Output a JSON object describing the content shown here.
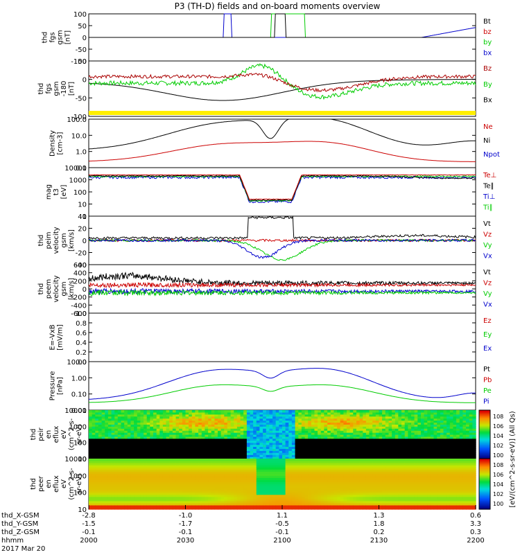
{
  "chart_data": {
    "type": "line",
    "title": "P3 (TH-D) fields and on-board moments overview",
    "date": "2017 Mar 20",
    "time_axis": {
      "tick_labels": [
        "2000",
        "2030",
        "2100",
        "2130",
        "2200"
      ],
      "orbit_rows": [
        {
          "label": "thd_X-GSM",
          "values": [
            "-2.8",
            "-1.0",
            "1.1",
            "1.3",
            "0.6"
          ]
        },
        {
          "label": "thd_Y-GSM",
          "values": [
            "-1.5",
            "-1.7",
            "-0.5",
            "1.8",
            "3.3"
          ]
        },
        {
          "label": "thd_Z-GSM",
          "values": [
            "-0.1",
            "-0.1",
            "-0.1",
            "0.2",
            "0.3"
          ]
        },
        {
          "label": "hhmm",
          "values": [
            "2000",
            "2030",
            "2100",
            "2130",
            "2200"
          ]
        }
      ]
    },
    "panels": [
      {
        "id": "fgs",
        "ylabel": [
          "thd",
          "fgs",
          "gsm",
          "[nT]"
        ],
        "ticks": [
          "100",
          "50",
          "0",
          "-50",
          "-100"
        ],
        "ylim": [
          -100,
          100
        ],
        "legend": [
          {
            "name": "Bt",
            "color": "#000000"
          },
          {
            "name": "bz",
            "color": "#cc0000"
          },
          {
            "name": "by",
            "color": "#00cc00"
          },
          {
            "name": "bx",
            "color": "#0000cc"
          }
        ]
      },
      {
        "id": "fgs2",
        "ylabel": [
          "thd",
          "fgs",
          "gsm",
          "-180",
          "[nT]"
        ],
        "ticks": [
          "50",
          "0",
          "-50",
          "-100"
        ],
        "ylim": [
          -125,
          75
        ],
        "legend": [
          {
            "name": "Bz",
            "color": "#aa0000"
          },
          {
            "name": "By",
            "color": "#00cc00"
          },
          {
            "name": "Bx",
            "color": "#000000"
          }
        ]
      },
      {
        "id": "density",
        "ylabel": [
          "Density",
          "[cm-3]"
        ],
        "ticks": [
          "100.0",
          "10.0",
          "1.0",
          "0.1"
        ],
        "scale": "log",
        "ylim": [
          0.1,
          300
        ],
        "legend": [
          {
            "name": "Ne",
            "color": "#cc0000"
          },
          {
            "name": "Ni",
            "color": "#000000"
          },
          {
            "name": "Npot",
            "color": "#0000cc"
          }
        ]
      },
      {
        "id": "temp",
        "ylabel": [
          "mag",
          "t3",
          "[eV]"
        ],
        "ticks": [
          "10000",
          "1000",
          "100",
          "10",
          "1"
        ],
        "scale": "log",
        "ylim": [
          1,
          10000
        ],
        "legend": [
          {
            "name": "Te⊥",
            "color": "#cc0000"
          },
          {
            "name": "Te∥",
            "color": "#000000"
          },
          {
            "name": "Ti⊥",
            "color": "#0000cc"
          },
          {
            "name": "Ti∥",
            "color": "#00cc00"
          }
        ]
      },
      {
        "id": "peim",
        "ylabel": [
          "thd",
          "peim",
          "velocity",
          "gsm",
          "[km/s]"
        ],
        "ticks": [
          "40",
          "20",
          "0",
          "-20",
          "-40"
        ],
        "ylim": [
          -40,
          40
        ],
        "legend": [
          {
            "name": "Vt",
            "color": "#000000"
          },
          {
            "name": "Vz",
            "color": "#cc0000"
          },
          {
            "name": "Vy",
            "color": "#00cc00"
          },
          {
            "name": "Vx",
            "color": "#0000cc"
          }
        ]
      },
      {
        "id": "peem",
        "ylabel": [
          "thd",
          "peem",
          "velocity",
          "gsm",
          "[km/s]"
        ],
        "ticks": [
          "600",
          "400",
          "200",
          "0",
          "-200",
          "-400",
          "-600"
        ],
        "ylim": [
          -600,
          600
        ],
        "legend": [
          {
            "name": "Vt",
            "color": "#000000"
          },
          {
            "name": "Vz",
            "color": "#cc0000"
          },
          {
            "name": "Vy",
            "color": "#00cc00"
          },
          {
            "name": "Vx",
            "color": "#0000cc"
          }
        ]
      },
      {
        "id": "efield",
        "ylabel": [
          "E=-VxB",
          "[mV/m]"
        ],
        "ticks": [
          "1.0",
          "0.8",
          "0.6",
          "0.4",
          "0.2",
          "0.0"
        ],
        "ylim": [
          0,
          1
        ],
        "legend": [
          {
            "name": "Ez",
            "color": "#cc0000"
          },
          {
            "name": "Ey",
            "color": "#00cc00"
          },
          {
            "name": "Ex",
            "color": "#0000cc"
          }
        ]
      },
      {
        "id": "pressure",
        "ylabel": [
          "Pressure",
          "[nPa]"
        ],
        "ticks": [
          "10.00",
          "1.00",
          "0.10",
          "0.01"
        ],
        "scale": "log",
        "ylim": [
          0.005,
          20
        ],
        "legend": [
          {
            "name": "Pt",
            "color": "#000000"
          },
          {
            "name": "Pb",
            "color": "#cc0000"
          },
          {
            "name": "Pe",
            "color": "#00cc00"
          },
          {
            "name": "Pi",
            "color": "#0000cc"
          }
        ]
      },
      {
        "id": "peir",
        "ylabel": [
          "thd",
          "peir",
          "en",
          "eflux",
          "eV",
          "(cm^2-s-",
          "sr-eV)"
        ],
        "ticks": [
          "10000",
          "1000",
          "100",
          "10"
        ],
        "scale": "log",
        "ylim": [
          5,
          20000
        ]
      },
      {
        "id": "peer",
        "ylabel": [
          "thd",
          "peer",
          "en",
          "eflux",
          "eV",
          "(cm^2-s-",
          "sr-eV)"
        ],
        "ticks": [
          "10000",
          "1000",
          "100",
          "10"
        ],
        "scale": "log",
        "ylim": [
          5,
          20000
        ]
      }
    ],
    "colorbar": {
      "label": "[eV/(cm^2-s-sr-eV)] (All Qs)",
      "ticks_top": [
        "10^8",
        "10^6",
        "10^4",
        "10^2",
        "10^0"
      ],
      "ticks_bottom": [
        "10^8",
        "10^6",
        "10^4",
        "10^2",
        "10^0"
      ]
    }
  }
}
